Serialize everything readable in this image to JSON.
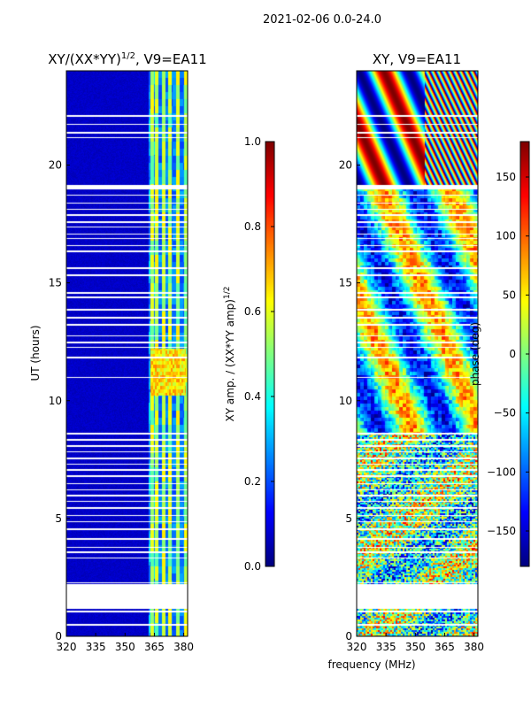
{
  "figure_title": "2021-02-06 0.0-24.0",
  "xlabel": "frequency (MHz)",
  "chart_data": [
    {
      "type": "heatmap",
      "title_main": "XY/(XX*YY)",
      "title_sup": "1/2",
      "title_tail": ", V9=EA11",
      "xlabel": "",
      "ylabel": "UT (hours)",
      "xlim": [
        320,
        382
      ],
      "ylim": [
        0,
        24
      ],
      "xticks": [
        320,
        335,
        350,
        365,
        380
      ],
      "yticks": [
        0,
        5,
        10,
        15,
        20
      ],
      "colorbar": {
        "label_main": "XY amp. / (XX*YY amp)",
        "label_sup": "1/2",
        "range": [
          0.0,
          1.0
        ],
        "ticks": [
          "0.0",
          "0.2",
          "0.4",
          "0.6",
          "0.8",
          "1.0"
        ],
        "tick_values": [
          0.0,
          0.2,
          0.4,
          0.6,
          0.8,
          1.0
        ],
        "colormap": "jet"
      }
    },
    {
      "type": "heatmap",
      "title_main": "XY, V9=EA11",
      "title_sup": "",
      "title_tail": "",
      "xlabel": "",
      "ylabel": "",
      "xlim": [
        320,
        382
      ],
      "ylim": [
        0,
        24
      ],
      "xticks": [
        320,
        335,
        350,
        365,
        380
      ],
      "yticks": [
        0,
        5,
        10,
        15,
        20
      ],
      "colorbar": {
        "label_main": "phase (deg)",
        "label_sup": "",
        "range": [
          -180,
          180
        ],
        "ticks": [
          "150",
          "100",
          "50",
          "0",
          "−50",
          "−100",
          "−150"
        ],
        "tick_values": [
          150,
          100,
          50,
          0,
          -50,
          -100,
          -150
        ],
        "colormap": "jet"
      }
    }
  ],
  "data_gaps_hours": [
    [
      0.45,
      0.52
    ],
    [
      1.0,
      1.1
    ],
    [
      1.15,
      2.2
    ],
    [
      2.25,
      2.3
    ],
    [
      3.3,
      3.36
    ],
    [
      3.52,
      3.6
    ],
    [
      3.75,
      3.8
    ],
    [
      4.1,
      4.16
    ],
    [
      4.52,
      4.58
    ],
    [
      4.83,
      4.88
    ],
    [
      5.12,
      5.16
    ],
    [
      5.42,
      5.47
    ],
    [
      5.7,
      5.75
    ],
    [
      5.95,
      6.0
    ],
    [
      6.18,
      6.24
    ],
    [
      6.45,
      6.5
    ],
    [
      6.75,
      6.82
    ],
    [
      7.02,
      7.08
    ],
    [
      7.28,
      7.33
    ],
    [
      7.52,
      7.58
    ],
    [
      7.8,
      7.86
    ],
    [
      8.05,
      8.1
    ],
    [
      8.3,
      8.36
    ],
    [
      8.55,
      8.62
    ],
    [
      10.95,
      11.0
    ],
    [
      11.8,
      11.86
    ],
    [
      12.25,
      12.3
    ],
    [
      12.45,
      12.52
    ],
    [
      12.72,
      12.78
    ],
    [
      13.2,
      13.26
    ],
    [
      13.48,
      13.55
    ],
    [
      13.82,
      13.88
    ],
    [
      14.35,
      14.42
    ],
    [
      14.55,
      14.6
    ],
    [
      15.3,
      15.35
    ],
    [
      15.6,
      15.66
    ],
    [
      16.3,
      16.36
    ],
    [
      16.55,
      16.6
    ],
    [
      16.85,
      16.92
    ],
    [
      17.05,
      17.1
    ],
    [
      17.35,
      17.4
    ],
    [
      17.55,
      17.6
    ],
    [
      17.85,
      17.9
    ],
    [
      18.1,
      18.15
    ],
    [
      18.35,
      18.42
    ],
    [
      18.7,
      18.76
    ],
    [
      18.95,
      19.15
    ],
    [
      21.15,
      21.2
    ],
    [
      21.35,
      21.42
    ],
    [
      21.7,
      21.76
    ],
    [
      22.05,
      22.12
    ]
  ],
  "amp_bright_channels_mhz": [
    364,
    366,
    370,
    373,
    377,
    381
  ]
}
